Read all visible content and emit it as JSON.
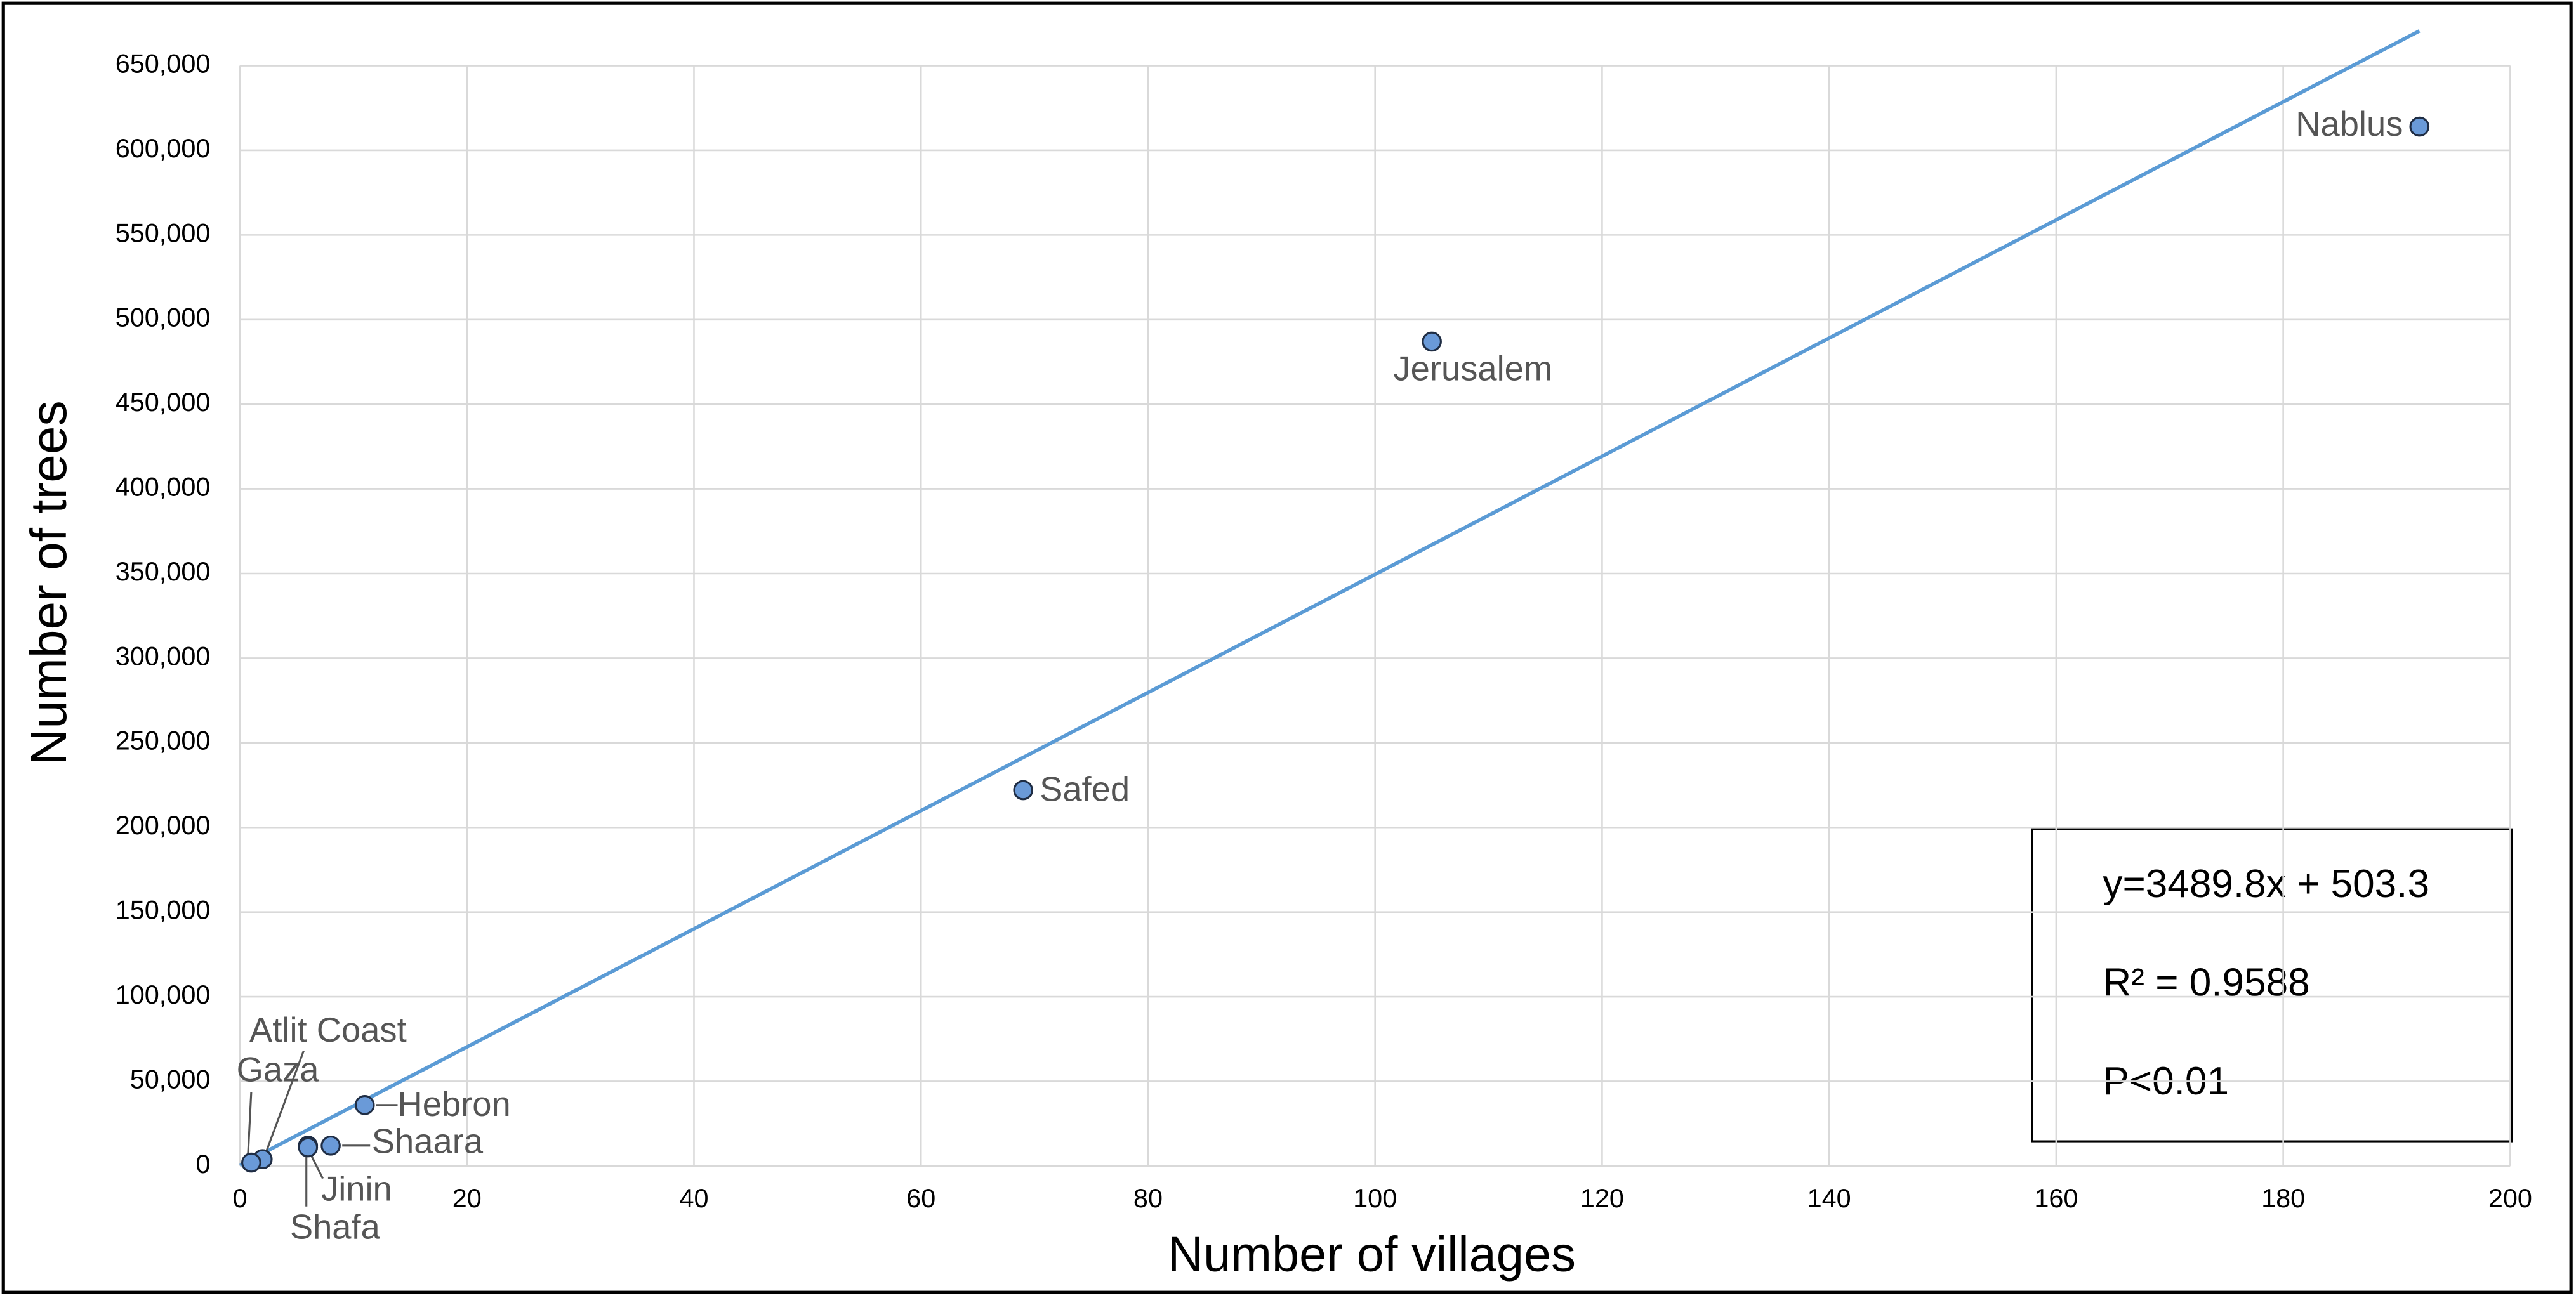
{
  "chart_data": {
    "type": "scatter",
    "x_label": "Number of villages",
    "y_label": "Number of trees",
    "series": [
      {
        "color": "#6a9ad8",
        "labels": [
          "Nablus",
          "Jerusalem",
          "Safed",
          "Hebron",
          "Shaara",
          "Jinin",
          "Shafa",
          "Atlit Coast",
          "Gaza"
        ],
        "x": [
          192,
          105,
          69,
          11,
          8,
          6,
          6,
          2,
          1
        ],
        "values": [
          614000,
          487000,
          222000,
          36000,
          12000,
          12000,
          11000,
          4000,
          2000
        ]
      }
    ],
    "trendline": {
      "slope": 3489.8,
      "intercept": 503.3,
      "color": "#5b9bd5",
      "equation": "y=3489.8x + 503.3",
      "r_squared": "R² = 0.9588",
      "p_value": "P<0.01"
    },
    "xlim": [
      0,
      200
    ],
    "xticks": [
      0,
      20,
      40,
      60,
      80,
      100,
      120,
      140,
      160,
      180,
      200
    ],
    "ylim": [
      0,
      650000
    ],
    "yticks": [
      {
        "value": 0,
        "label": "0"
      },
      {
        "value": 50000,
        "label": "50,000"
      },
      {
        "value": 100000,
        "label": "100,000"
      },
      {
        "value": 150000,
        "label": "150,000"
      },
      {
        "value": 200000,
        "label": "200,000"
      },
      {
        "value": 250000,
        "label": "250,000"
      },
      {
        "value": 300000,
        "label": "300,000"
      },
      {
        "value": 350000,
        "label": "350,000"
      },
      {
        "value": 400000,
        "label": "400,000"
      },
      {
        "value": 450000,
        "label": "450,000"
      },
      {
        "value": 500000,
        "label": "500,000"
      },
      {
        "value": 550000,
        "label": "550,000"
      },
      {
        "value": 600000,
        "label": "600,000"
      },
      {
        "value": 650000,
        "label": "650,000"
      }
    ],
    "grid": true
  }
}
